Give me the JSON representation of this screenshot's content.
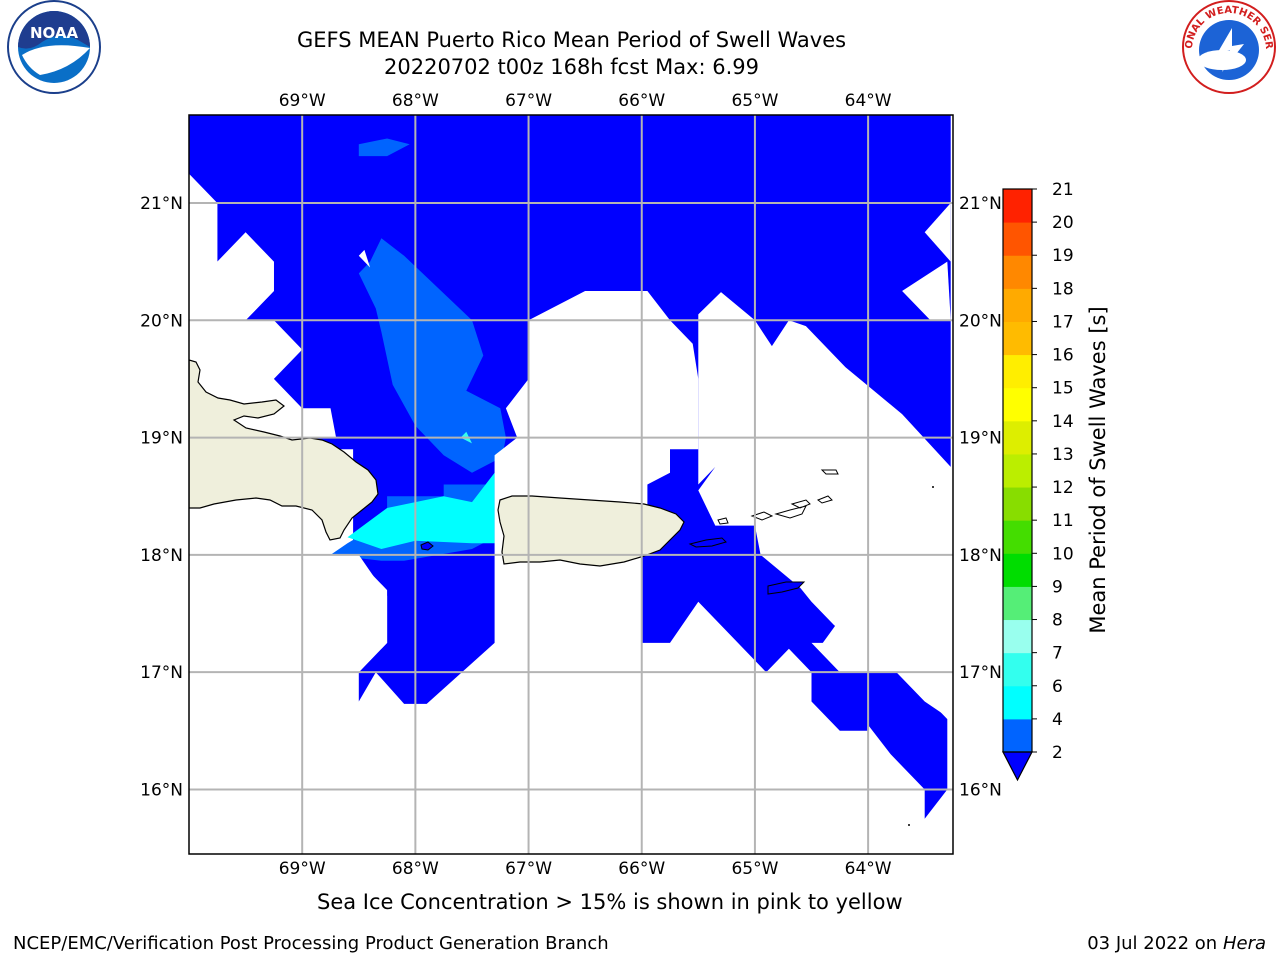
{
  "title_line1": "GEFS MEAN Puerto Rico Mean Period of Swell Waves",
  "title_line2": "20220702 t00z 168h fcst   Max: 6.99",
  "logos": {
    "left": "noaa-logo",
    "right": "national-weather-service-logo",
    "right_text": "NATIONAL WEATHER SERVICE"
  },
  "footer": {
    "sea_ice_note": "Sea Ice Concentration > 15% is shown in pink to yellow",
    "credit_left": "NCEP/EMC/Verification Post Processing Product Generation Branch",
    "credit_date": "03 Jul 2022 on ",
    "credit_machine": "Hera"
  },
  "colors": {
    "land": "#efefdc",
    "grid": "#b4b4b4",
    "ocean_missing": "#ffffff"
  },
  "chart_data": {
    "type": "heatmap",
    "subtype": "filled-contour map",
    "x_axis": {
      "range": [
        -70.0,
        -63.25
      ],
      "ticks": [
        -69,
        -68,
        -67,
        -66,
        -65,
        -64
      ],
      "tick_labels": [
        "69°W",
        "68°W",
        "67°W",
        "66°W",
        "65°W",
        "64°W"
      ]
    },
    "y_axis": {
      "range": [
        15.45,
        21.75
      ],
      "ticks": [
        16,
        17,
        18,
        19,
        20,
        21
      ],
      "tick_labels": [
        "16°N",
        "17°N",
        "18°N",
        "19°N",
        "20°N",
        "21°N"
      ]
    },
    "grid": true,
    "colorbar": {
      "label": "Mean Period of Swell Waves [s]",
      "placement": "right",
      "levels": [
        2,
        4,
        6,
        7,
        8,
        9,
        10,
        11,
        12,
        13,
        14,
        15,
        16,
        17,
        18,
        19,
        20,
        21
      ],
      "tick_labels": [
        "2",
        "4",
        "6",
        "7",
        "8",
        "9",
        "10",
        "11",
        "12",
        "13",
        "14",
        "15",
        "16",
        "17",
        "18",
        "19",
        "20",
        "21"
      ],
      "colors": [
        "#0064ff",
        "#00ffff",
        "#33ffee",
        "#99ffee",
        "#55ee77",
        "#00dd00",
        "#44dd00",
        "#88dd00",
        "#bbee00",
        "#ddee00",
        "#ffff00",
        "#ffee00",
        "#ffbb00",
        "#ffaa00",
        "#ff8800",
        "#ff5500",
        "#ff2200"
      ],
      "under_color": "#0000ff",
      "extend": "min"
    },
    "max_value": 6.99,
    "regions": [
      {
        "name": "below-2",
        "color": "#0000ff",
        "polygon": [
          [
            -70,
            21.75
          ],
          [
            -63.27,
            21.75
          ],
          [
            -63.27,
            18.75
          ],
          [
            -63.7,
            19.2
          ],
          [
            -64.2,
            19.6
          ],
          [
            -64.55,
            19.95
          ],
          [
            -64.7,
            20.0
          ],
          [
            -64.85,
            19.78
          ],
          [
            -65.0,
            20.0
          ],
          [
            -65.3,
            20.24
          ],
          [
            -65.5,
            20.05
          ],
          [
            -65.5,
            18.6
          ],
          [
            -65.35,
            18.75
          ],
          [
            -65.5,
            18.55
          ],
          [
            -65.35,
            18.25
          ],
          [
            -65.0,
            18.25
          ],
          [
            -64.95,
            18.0
          ],
          [
            -64.6,
            17.72
          ],
          [
            -64.5,
            17.6
          ],
          [
            -64.3,
            17.4
          ],
          [
            -64.0,
            17.2
          ],
          [
            -63.7,
            17.0
          ],
          [
            -63.55,
            16.85
          ],
          [
            -63.3,
            16.6
          ],
          [
            -63.3,
            16.0
          ],
          [
            -63.5,
            15.75
          ],
          [
            -63.5,
            16.0
          ],
          [
            -63.8,
            16.3
          ],
          [
            -64.0,
            16.55
          ],
          [
            -64.0,
            16.5
          ],
          [
            -64.25,
            16.5
          ],
          [
            -64.5,
            16.75
          ],
          [
            -64.5,
            17.0
          ],
          [
            -64.7,
            17.2
          ],
          [
            -64.9,
            17.0
          ],
          [
            -65.1,
            17.2
          ],
          [
            -65.5,
            17.6
          ],
          [
            -65.75,
            17.25
          ],
          [
            -66.0,
            17.25
          ],
          [
            -66.0,
            17.5
          ],
          [
            -66.0,
            18.0
          ],
          [
            -67.3,
            18.0
          ],
          [
            -67.3,
            17.25
          ],
          [
            -67.9,
            16.73
          ],
          [
            -68.1,
            16.73
          ],
          [
            -68.35,
            17.0
          ],
          [
            -68.5,
            16.75
          ],
          [
            -68.5,
            17.0
          ],
          [
            -68.25,
            17.25
          ],
          [
            -68.25,
            17.7
          ],
          [
            -68.55,
            18.0
          ],
          [
            -68.55,
            18.9
          ],
          [
            -69.0,
            18.9
          ],
          [
            -69.0,
            19.25
          ],
          [
            -69.25,
            19.5
          ],
          [
            -69.0,
            19.75
          ],
          [
            -69.25,
            20.0
          ],
          [
            -69.5,
            20.0
          ],
          [
            -69.25,
            20.25
          ],
          [
            -69.25,
            20.5
          ],
          [
            -69.5,
            20.75
          ],
          [
            -69.75,
            20.5
          ],
          [
            -69.75,
            21.0
          ],
          [
            -70.0,
            21.25
          ]
        ]
      },
      {
        "name": "white-holes",
        "color": "#ffffff",
        "note": "drawn as background"
      },
      {
        "name": "2-4",
        "color": "#0064ff",
        "polygon": [
          [
            -68.4,
            20.5
          ],
          [
            -68.3,
            20.7
          ],
          [
            -68.1,
            20.55
          ],
          [
            -67.5,
            20.0
          ],
          [
            -67.4,
            19.7
          ],
          [
            -67.55,
            19.4
          ],
          [
            -67.25,
            19.25
          ],
          [
            -67.2,
            19.0
          ],
          [
            -67.25,
            18.75
          ],
          [
            -67.35,
            18.6
          ],
          [
            -67.75,
            18.6
          ],
          [
            -67.75,
            18.5
          ],
          [
            -68.25,
            18.5
          ],
          [
            -68.25,
            18.3
          ],
          [
            -68.6,
            18.1
          ],
          [
            -68.75,
            18.0
          ],
          [
            -68.3,
            17.95
          ],
          [
            -68.1,
            17.95
          ],
          [
            -67.5,
            18.05
          ],
          [
            -67.3,
            18.15
          ],
          [
            -67.3,
            18.8
          ],
          [
            -67.5,
            18.7
          ],
          [
            -67.75,
            18.85
          ],
          [
            -68.0,
            19.1
          ],
          [
            -68.2,
            19.45
          ],
          [
            -68.3,
            19.9
          ],
          [
            -68.35,
            20.1
          ],
          [
            -68.5,
            20.4
          ]
        ]
      },
      {
        "name": "4-6",
        "color": "#00ffff",
        "polygon": [
          [
            -68.6,
            18.15
          ],
          [
            -68.25,
            18.4
          ],
          [
            -67.75,
            18.5
          ],
          [
            -67.5,
            18.45
          ],
          [
            -67.3,
            18.7
          ],
          [
            -67.3,
            18.1
          ],
          [
            -67.5,
            18.1
          ],
          [
            -68.0,
            18.12
          ],
          [
            -68.3,
            18.05
          ]
        ]
      },
      {
        "name": "6-7",
        "color": "#33ffee",
        "polygon": [
          [
            -67.6,
            19.0
          ],
          [
            -67.5,
            18.95
          ],
          [
            -67.55,
            19.05
          ]
        ]
      }
    ]
  }
}
